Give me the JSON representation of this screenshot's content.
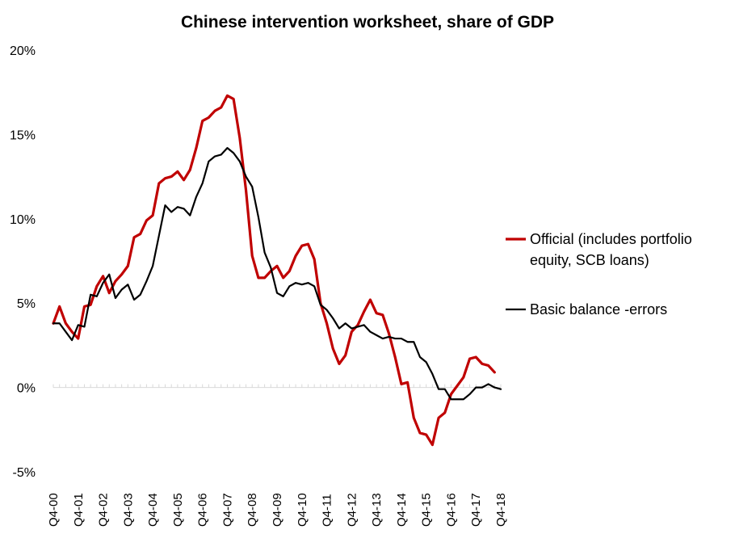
{
  "chart_data": {
    "type": "line",
    "title": "Chinese intervention worksheet, share of GDP",
    "xlabel": "",
    "ylabel": "",
    "ylim": [
      -5,
      20
    ],
    "yticks": [
      -5,
      0,
      5,
      10,
      15,
      20
    ],
    "ytick_labels": [
      "-5%",
      "0%",
      "5%",
      "10%",
      "15%",
      "20%"
    ],
    "grid": false,
    "legend_position": "right",
    "x_start_quarter": "Q4-00",
    "x_tick_labels": [
      "Q4-00",
      "Q4-01",
      "Q4-02",
      "Q4-03",
      "Q4-04",
      "Q4-05",
      "Q4-06",
      "Q4-07",
      "Q4-08",
      "Q4-09",
      "Q4-10",
      "Q4-11",
      "Q4-12",
      "Q4-13",
      "Q4-14",
      "Q4-15",
      "Q4-16",
      "Q4-17",
      "Q4-18"
    ],
    "series": [
      {
        "name": "Official (includes portfolio equity, SCB loans)",
        "color": "#c00000",
        "values": [
          3.8,
          4.8,
          3.8,
          3.3,
          2.9,
          4.8,
          4.9,
          6.0,
          6.6,
          5.6,
          6.3,
          6.7,
          7.2,
          8.9,
          9.1,
          9.9,
          10.2,
          12.1,
          12.4,
          12.5,
          12.8,
          12.3,
          12.9,
          14.2,
          15.8,
          16.0,
          16.4,
          16.6,
          17.3,
          17.1,
          14.8,
          11.7,
          7.8,
          6.5,
          6.5,
          6.9,
          7.2,
          6.5,
          6.9,
          7.8,
          8.4,
          8.5,
          7.6,
          5.0,
          3.8,
          2.3,
          1.4,
          1.9,
          3.3,
          3.7,
          4.5,
          5.2,
          4.4,
          4.3,
          3.2,
          1.8,
          0.2,
          0.3,
          -1.8,
          -2.7,
          -2.8,
          -3.4,
          -1.8,
          -1.5,
          -0.4,
          0.1,
          0.6,
          1.7,
          1.8,
          1.4,
          1.3,
          0.9
        ]
      },
      {
        "name": "Basic balance -errors",
        "color": "#000000",
        "values": [
          3.8,
          3.8,
          3.3,
          2.8,
          3.7,
          3.6,
          5.5,
          5.4,
          6.2,
          6.7,
          5.3,
          5.8,
          6.1,
          5.2,
          5.5,
          6.3,
          7.2,
          9.0,
          10.8,
          10.4,
          10.7,
          10.6,
          10.2,
          11.3,
          12.1,
          13.4,
          13.7,
          13.8,
          14.2,
          13.9,
          13.4,
          12.5,
          11.9,
          10.1,
          8.0,
          7.1,
          5.6,
          5.4,
          6.0,
          6.2,
          6.1,
          6.2,
          6.0,
          4.9,
          4.6,
          4.1,
          3.5,
          3.8,
          3.5,
          3.6,
          3.7,
          3.3,
          3.1,
          2.9,
          3.0,
          2.9,
          2.9,
          2.7,
          2.7,
          1.8,
          1.5,
          0.8,
          -0.1,
          -0.1,
          -0.7,
          -0.7,
          -0.7,
          -0.4,
          0.0,
          0.0,
          0.2,
          0.0,
          -0.1
        ]
      }
    ]
  }
}
